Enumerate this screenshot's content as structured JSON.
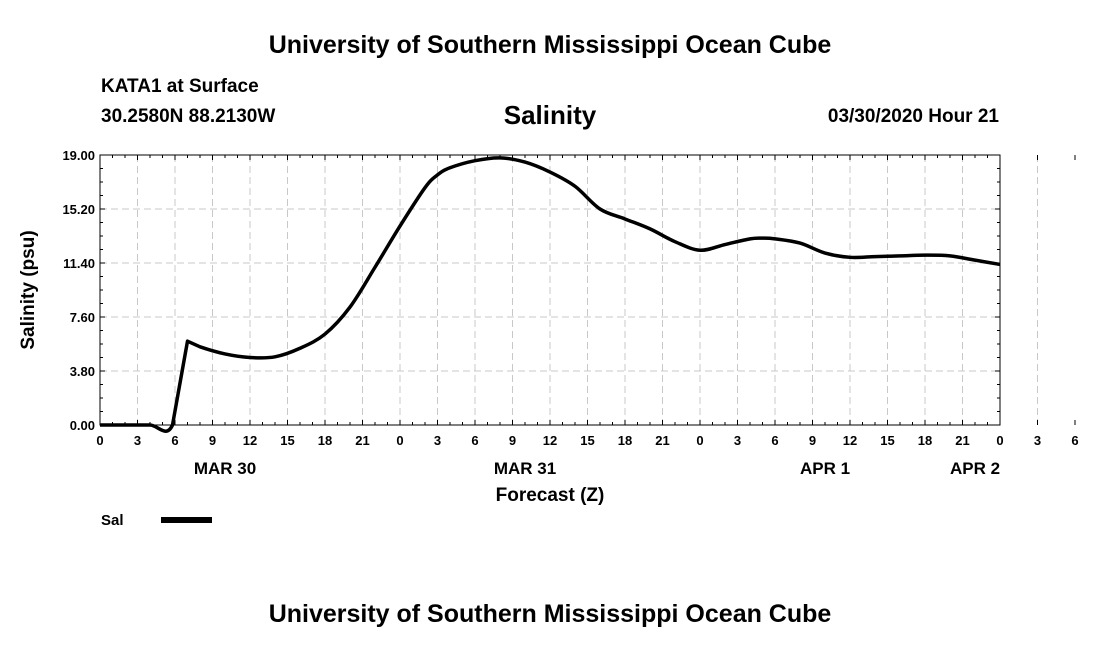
{
  "header": {
    "title": "University of Southern Mississippi Ocean Cube",
    "station": "KATA1 at Surface",
    "coords": "30.2580N 88.2130W",
    "datetime": "03/30/2020 Hour 21"
  },
  "footer": {
    "title": "University of Southern Mississippi Ocean Cube"
  },
  "chart_data": {
    "type": "line",
    "title": "Salinity",
    "xlabel": "Forecast (Z)",
    "ylabel": "Salinity (psu)",
    "ylim": [
      0,
      19
    ],
    "yticks": [
      "0.00",
      "3.80",
      "7.60",
      "11.40",
      "15.20",
      "19.00"
    ],
    "xlim": [
      0,
      72
    ],
    "xtick_labels": [
      "0",
      "3",
      "6",
      "9",
      "12",
      "15",
      "18",
      "21",
      "0",
      "3",
      "6",
      "9",
      "12",
      "15",
      "18",
      "21",
      "0",
      "3",
      "6",
      "9",
      "12",
      "15",
      "18",
      "21",
      "0",
      "3",
      "6"
    ],
    "date_labels": [
      {
        "label": "MAR 30",
        "hour": 10
      },
      {
        "label": "MAR 31",
        "hour": 34
      },
      {
        "label": "APR 1",
        "hour": 58
      },
      {
        "label": "APR 2",
        "hour": 70
      }
    ],
    "grid": true,
    "line_color": "#000000",
    "series": [
      {
        "name": "Sal",
        "x": [
          0,
          2,
          4,
          5.8,
          7,
          8,
          10,
          12,
          14,
          16,
          18,
          20,
          22,
          24,
          26,
          27,
          28,
          30,
          32,
          34,
          36,
          38,
          40,
          42,
          44,
          46,
          48,
          50,
          52,
          53,
          54,
          56,
          58,
          60,
          62,
          64,
          66,
          68,
          70,
          72
        ],
        "y": [
          0,
          0,
          0,
          0,
          5.9,
          5.5,
          5.0,
          4.75,
          4.8,
          5.4,
          6.4,
          8.3,
          11.1,
          14.0,
          16.7,
          17.6,
          18.1,
          18.6,
          18.8,
          18.5,
          17.8,
          16.8,
          15.2,
          14.5,
          13.8,
          12.9,
          12.3,
          12.7,
          13.1,
          13.15,
          13.1,
          12.8,
          12.1,
          11.8,
          11.85,
          11.9,
          11.95,
          11.9,
          11.6,
          11.3
        ]
      }
    ],
    "legend": [
      {
        "label": "Sal",
        "color": "#000000"
      }
    ]
  }
}
